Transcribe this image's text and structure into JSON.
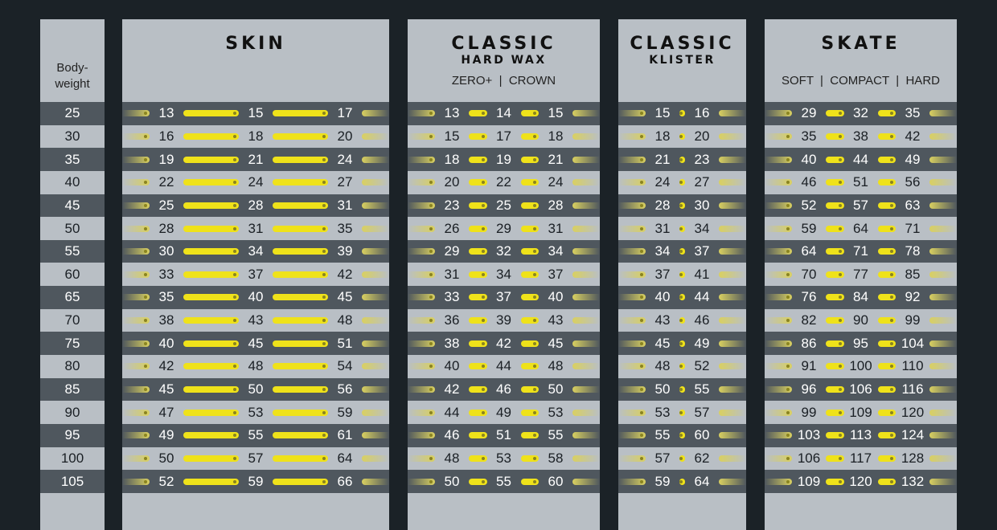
{
  "chart_data": {
    "type": "table",
    "columns": [
      {
        "key": "bodyweight",
        "label": "Body-\nweight"
      },
      {
        "key": "skin",
        "title": "SKIN",
        "subtitle": "",
        "options": ""
      },
      {
        "key": "hardwax",
        "title": "CLASSIC",
        "subtitle": "HARD WAX",
        "options": "ZERO+  |  CROWN"
      },
      {
        "key": "klister",
        "title": "CLASSIC",
        "subtitle": "KLISTER",
        "options": ""
      },
      {
        "key": "skate",
        "title": "SKATE",
        "subtitle": "",
        "options": "SOFT  |  COMPACT  |  HARD"
      }
    ],
    "bodyweight": [
      25,
      30,
      35,
      40,
      45,
      50,
      55,
      60,
      65,
      70,
      75,
      80,
      85,
      90,
      95,
      100,
      105
    ],
    "skin": [
      [
        13,
        15,
        17
      ],
      [
        16,
        18,
        20
      ],
      [
        19,
        21,
        24
      ],
      [
        22,
        24,
        27
      ],
      [
        25,
        28,
        31
      ],
      [
        28,
        31,
        35
      ],
      [
        30,
        34,
        39
      ],
      [
        33,
        37,
        42
      ],
      [
        35,
        40,
        45
      ],
      [
        38,
        43,
        48
      ],
      [
        40,
        45,
        51
      ],
      [
        42,
        48,
        54
      ],
      [
        45,
        50,
        56
      ],
      [
        47,
        53,
        59
      ],
      [
        49,
        55,
        61
      ],
      [
        50,
        57,
        64
      ],
      [
        52,
        59,
        66
      ]
    ],
    "hardwax": [
      [
        13,
        14,
        15
      ],
      [
        15,
        17,
        18
      ],
      [
        18,
        19,
        21
      ],
      [
        20,
        22,
        24
      ],
      [
        23,
        25,
        28
      ],
      [
        26,
        29,
        31
      ],
      [
        29,
        32,
        34
      ],
      [
        31,
        34,
        37
      ],
      [
        33,
        37,
        40
      ],
      [
        36,
        39,
        43
      ],
      [
        38,
        42,
        45
      ],
      [
        40,
        44,
        48
      ],
      [
        42,
        46,
        50
      ],
      [
        44,
        49,
        53
      ],
      [
        46,
        51,
        55
      ],
      [
        48,
        53,
        58
      ],
      [
        50,
        55,
        60
      ]
    ],
    "klister": [
      [
        15,
        16
      ],
      [
        18,
        20
      ],
      [
        21,
        23
      ],
      [
        24,
        27
      ],
      [
        28,
        30
      ],
      [
        31,
        34
      ],
      [
        34,
        37
      ],
      [
        37,
        41
      ],
      [
        40,
        44
      ],
      [
        43,
        46
      ],
      [
        45,
        49
      ],
      [
        48,
        52
      ],
      [
        50,
        55
      ],
      [
        53,
        57
      ],
      [
        55,
        60
      ],
      [
        57,
        62
      ],
      [
        59,
        64
      ]
    ],
    "skate": [
      [
        29,
        32,
        35
      ],
      [
        35,
        38,
        42
      ],
      [
        40,
        44,
        49
      ],
      [
        46,
        51,
        56
      ],
      [
        52,
        57,
        63
      ],
      [
        59,
        64,
        71
      ],
      [
        64,
        71,
        78
      ],
      [
        70,
        77,
        85
      ],
      [
        76,
        84,
        92
      ],
      [
        82,
        90,
        99
      ],
      [
        86,
        95,
        104
      ],
      [
        91,
        100,
        110
      ],
      [
        96,
        106,
        116
      ],
      [
        99,
        109,
        120
      ],
      [
        103,
        113,
        124
      ],
      [
        106,
        117,
        128
      ],
      [
        109,
        120,
        132
      ]
    ],
    "colors": {
      "background": "#1b2227",
      "row_dark": "#4f575e",
      "row_light": "#b9bfc5",
      "bar": "#efe21a"
    }
  }
}
